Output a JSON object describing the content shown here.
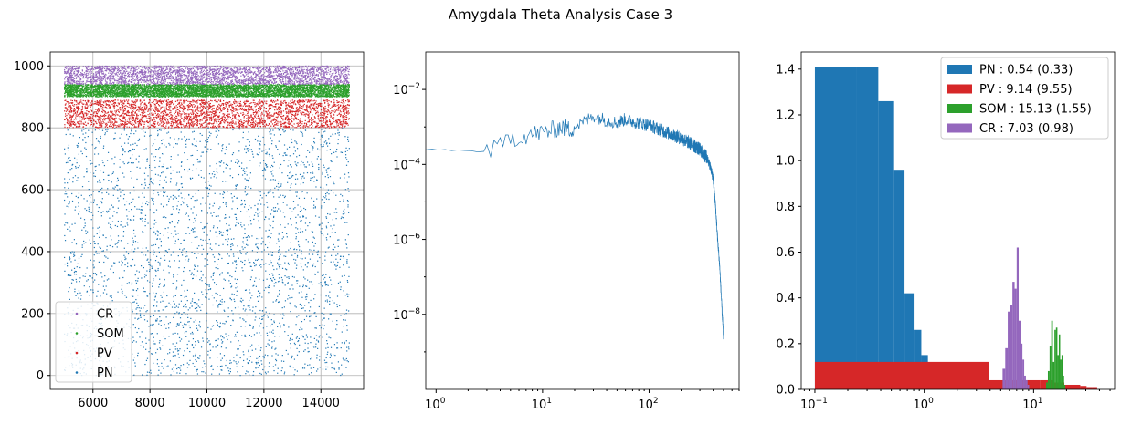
{
  "figure": {
    "title": "Amygdala Theta Analysis Case 3"
  },
  "colors": {
    "PN": "#1f77b4",
    "PV": "#d62728",
    "SOM": "#2ca02c",
    "CR": "#9467bd"
  },
  "chart_data": [
    {
      "type": "scatter",
      "title": "",
      "xlabel": "",
      "ylabel": "",
      "xlim": [
        4500,
        15500
      ],
      "ylim": [
        -45,
        1045
      ],
      "xticks": [
        6000,
        8000,
        10000,
        12000,
        14000
      ],
      "xtick_labels": [
        "6000",
        "8000",
        "10000",
        "12000",
        "14000"
      ],
      "yticks": [
        0,
        200,
        400,
        600,
        800,
        1000
      ],
      "ytick_labels": [
        "0",
        "200",
        "400",
        "600",
        "800",
        "1000"
      ],
      "grid": true,
      "legend_position": "lower-left",
      "series": [
        {
          "name": "CR",
          "x_range": [
            5000,
            15000
          ],
          "y_range": [
            940,
            1000
          ],
          "approx_points": 3000
        },
        {
          "name": "SOM",
          "x_range": [
            5000,
            15000
          ],
          "y_range": [
            900,
            940
          ],
          "approx_points": 8000
        },
        {
          "name": "PV",
          "x_range": [
            5000,
            15000
          ],
          "y_range": [
            800,
            890
          ],
          "approx_points": 3000
        },
        {
          "name": "PN",
          "x_range": [
            5000,
            15000
          ],
          "y_range": [
            0,
            800
          ],
          "approx_points": 3500
        }
      ]
    },
    {
      "type": "line",
      "title": "",
      "xlabel": "",
      "ylabel": "",
      "xscale": "log",
      "yscale": "log",
      "xlim": [
        0.8,
        700
      ],
      "ylim": [
        1e-10,
        0.1
      ],
      "xticks": [
        1,
        10,
        100
      ],
      "xtick_labels": [
        "10^0",
        "10^1",
        "10^2"
      ],
      "yticks": [
        1e-08,
        1e-06,
        0.0001,
        0.01
      ],
      "ytick_labels": [
        "10^-8",
        "10^-6",
        "10^-4",
        "10^-2"
      ],
      "grid": false,
      "series": [
        {
          "name": "",
          "x": [
            0.8,
            1,
            1.5,
            2,
            3,
            3.5,
            4,
            4.5,
            5,
            6,
            7,
            8,
            10,
            12,
            15,
            18,
            20,
            25,
            30,
            35,
            40,
            50,
            60,
            70,
            80,
            100,
            120,
            150,
            200,
            250,
            300,
            350,
            380,
            400,
            420,
            440,
            460,
            480,
            500
          ],
          "y": [
            0.00025,
            0.00025,
            0.00024,
            0.00023,
            0.00022,
            0.00025,
            0.0003,
            0.0004,
            0.00055,
            0.0005,
            0.0006,
            0.00065,
            0.0007,
            0.0008,
            0.001,
            0.00085,
            0.001,
            0.0014,
            0.002,
            0.0017,
            0.0015,
            0.0013,
            0.0016,
            0.0014,
            0.0013,
            0.0011,
            0.0009,
            0.0007,
            0.0005,
            0.00035,
            0.00025,
            0.00015,
            8e-05,
            4e-05,
            8e-06,
            1e-06,
            2e-07,
            2e-08,
            2.5e-09
          ]
        }
      ]
    },
    {
      "type": "bar",
      "title": "",
      "xlabel": "",
      "ylabel": "",
      "xscale": "log",
      "xlim": [
        0.075,
        55
      ],
      "ylim": [
        0,
        1.475
      ],
      "xticks": [
        0.1,
        1,
        10
      ],
      "xtick_labels": [
        "10^-1",
        "10^0",
        "10^1"
      ],
      "yticks": [
        0,
        0.2,
        0.4,
        0.6,
        0.8,
        1.0,
        1.2,
        1.4
      ],
      "ytick_labels": [
        "0.0",
        "0.2",
        "0.4",
        "0.6",
        "0.8",
        "1.0",
        "1.2",
        "1.4"
      ],
      "grid": false,
      "legend_position": "top-right",
      "series": [
        {
          "name": "PN : 0.54 (0.33)",
          "key": "PN",
          "edges": [
            0.1,
            0.24,
            0.38,
            0.52,
            0.66,
            0.8,
            0.94,
            1.08,
            1.22,
            1.36
          ],
          "values": [
            1.41,
            1.41,
            1.26,
            0.96,
            0.42,
            0.26,
            0.15,
            0.1,
            0.06
          ]
        },
        {
          "name": "PV : 9.14 (9.55)",
          "key": "PV",
          "edges": [
            0.1,
            3.9,
            7.7,
            11.5,
            15.3,
            19.1,
            22.9,
            26.7,
            30.5,
            34.3,
            38.1
          ],
          "values": [
            0.12,
            0.04,
            0.04,
            0.04,
            0.03,
            0.02,
            0.02,
            0.015,
            0.01,
            0.01
          ]
        },
        {
          "name": "SOM : 15.13 (1.55)",
          "key": "SOM",
          "edges": [
            13.0,
            13.5,
            14.0,
            14.5,
            15.0,
            15.5,
            16.0,
            16.5,
            17.0,
            17.5,
            18.0,
            18.5,
            19.0,
            19.5
          ],
          "values": [
            0.03,
            0.08,
            0.19,
            0.3,
            0.12,
            0.26,
            0.27,
            0.15,
            0.24,
            0.13,
            0.15,
            0.06,
            0.02
          ]
        },
        {
          "name": "CR : 7.03 (0.98)",
          "key": "CR",
          "edges": [
            5.2,
            5.5,
            5.8,
            6.1,
            6.4,
            6.7,
            7.0,
            7.3,
            7.6,
            7.9,
            8.2,
            8.5,
            8.8,
            9.1
          ],
          "values": [
            0.09,
            0.18,
            0.34,
            0.37,
            0.47,
            0.44,
            0.62,
            0.3,
            0.2,
            0.13,
            0.06,
            0.04,
            0.02
          ]
        }
      ]
    }
  ]
}
